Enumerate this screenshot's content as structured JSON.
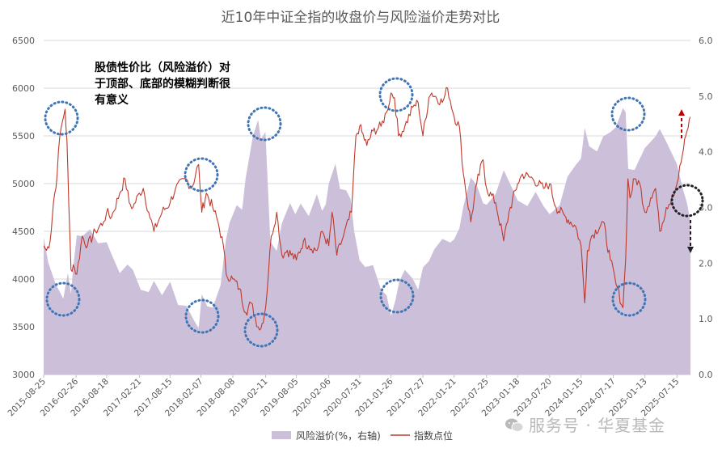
{
  "chart_data": {
    "type": "area",
    "title": "近10年中证全指的收盘价与风险溢价走势对比",
    "annotation": "股债性价比（风险溢价）对于顶部、底部的模糊判断很有意义",
    "annotation_lines": [
      "股债性价比（风险溢价）对",
      "于顶部、底部的模糊判断很",
      "有意义"
    ],
    "left_axis": {
      "ylim": [
        3000,
        6500
      ],
      "ticks": [
        "3000",
        "3500",
        "4000",
        "4500",
        "5000",
        "5500",
        "6000",
        "6500"
      ]
    },
    "right_axis": {
      "ylim": [
        0.0,
        6.0
      ],
      "ticks": [
        "0.0",
        "1.0",
        "2.0",
        "3.0",
        "4.0",
        "5.0",
        "6.0"
      ]
    },
    "x_ticks": [
      "2015-08-25",
      "2016-02-26",
      "2016-08-18",
      "2017-02-21",
      "2017-08-15",
      "2018-02-07",
      "2018-08-08",
      "2019-02-11",
      "2019-08-05",
      "2020-02-06",
      "2020-07-31",
      "2021-01-26",
      "2021-07-27",
      "2022-01-21",
      "2022-07-25",
      "2023-01-18",
      "2023-07-20",
      "2024-01-15",
      "2024-07-17",
      "2025-01-13",
      "2025-07-15"
    ],
    "x_range": [
      "2015-08-25",
      "2025-09-30"
    ],
    "series": [
      {
        "name": "风险溢价(%，右轴)",
        "axis": "right",
        "color": "#cbbfda",
        "kind": "area",
        "points": [
          [
            "2015-08-25",
            2.4
          ],
          [
            "2015-09-20",
            2.0
          ],
          [
            "2015-11-01",
            1.6
          ],
          [
            "2015-12-15",
            1.4
          ],
          [
            "2016-01-10",
            1.9
          ],
          [
            "2016-01-28",
            1.4
          ],
          [
            "2016-02-10",
            2.0
          ],
          [
            "2016-03-01",
            2.5
          ],
          [
            "2016-04-01",
            2.5
          ],
          [
            "2016-05-15",
            2.6
          ],
          [
            "2016-07-01",
            2.4
          ],
          [
            "2016-08-18",
            2.3
          ],
          [
            "2016-09-15",
            2.1
          ],
          [
            "2016-11-01",
            1.9
          ],
          [
            "2016-12-15",
            1.9
          ],
          [
            "2017-01-15",
            1.8
          ],
          [
            "2017-03-01",
            1.6
          ],
          [
            "2017-04-15",
            1.4
          ],
          [
            "2017-05-15",
            1.6
          ],
          [
            "2017-06-30",
            1.5
          ],
          [
            "2017-08-15",
            1.6
          ],
          [
            "2017-09-30",
            1.3
          ],
          [
            "2017-11-15",
            1.2
          ],
          [
            "2017-12-30",
            1.0
          ],
          [
            "2018-01-25",
            0.9
          ],
          [
            "2018-02-12",
            1.4
          ],
          [
            "2018-03-15",
            1.2
          ],
          [
            "2018-04-15",
            1.2
          ],
          [
            "2018-05-30",
            1.6
          ],
          [
            "2018-06-30",
            2.4
          ],
          [
            "2018-07-20",
            2.8
          ],
          [
            "2018-08-30",
            3.0
          ],
          [
            "2018-09-30",
            2.9
          ],
          [
            "2018-10-20",
            3.6
          ],
          [
            "2018-11-30",
            4.2
          ],
          [
            "2018-12-30",
            4.5
          ],
          [
            "2019-01-15",
            4.3
          ],
          [
            "2019-02-10",
            4.4
          ],
          [
            "2019-03-10",
            2.4
          ],
          [
            "2019-04-15",
            2.3
          ],
          [
            "2019-05-15",
            2.8
          ],
          [
            "2019-06-30",
            3.0
          ],
          [
            "2019-07-30",
            2.8
          ],
          [
            "2019-08-30",
            3.0
          ],
          [
            "2019-10-15",
            2.9
          ],
          [
            "2019-11-30",
            3.2
          ],
          [
            "2019-12-30",
            2.9
          ],
          [
            "2020-01-20",
            3.0
          ],
          [
            "2020-02-06",
            3.5
          ],
          [
            "2020-03-15",
            3.8
          ],
          [
            "2020-04-10",
            3.4
          ],
          [
            "2020-05-15",
            3.3
          ],
          [
            "2020-06-10",
            3.2
          ],
          [
            "2020-06-30",
            2.6
          ],
          [
            "2020-07-31",
            2.1
          ],
          [
            "2020-09-01",
            2.0
          ],
          [
            "2020-10-15",
            1.9
          ],
          [
            "2020-11-30",
            1.6
          ],
          [
            "2021-01-01",
            1.5
          ],
          [
            "2021-01-26",
            1.1
          ],
          [
            "2021-02-20",
            1.3
          ],
          [
            "2021-03-15",
            1.6
          ],
          [
            "2021-04-15",
            1.8
          ],
          [
            "2021-05-30",
            1.8
          ],
          [
            "2021-06-30",
            1.6
          ],
          [
            "2021-07-27",
            2.0
          ],
          [
            "2021-08-30",
            2.1
          ],
          [
            "2021-09-30",
            2.3
          ],
          [
            "2021-11-15",
            2.4
          ],
          [
            "2021-12-30",
            2.4
          ],
          [
            "2022-01-21",
            2.5
          ],
          [
            "2022-02-20",
            2.7
          ],
          [
            "2022-03-15",
            3.0
          ],
          [
            "2022-04-26",
            3.6
          ],
          [
            "2022-05-30",
            3.4
          ],
          [
            "2022-07-05",
            3.0
          ],
          [
            "2022-07-25",
            3.1
          ],
          [
            "2022-09-15",
            3.3
          ],
          [
            "2022-10-31",
            3.6
          ],
          [
            "2022-11-30",
            3.4
          ],
          [
            "2023-01-18",
            3.2
          ],
          [
            "2023-03-15",
            3.1
          ],
          [
            "2023-05-01",
            3.2
          ],
          [
            "2023-06-15",
            3.1
          ],
          [
            "2023-07-20",
            2.9
          ],
          [
            "2023-09-15",
            3.1
          ],
          [
            "2023-10-30",
            3.5
          ],
          [
            "2023-12-15",
            3.8
          ],
          [
            "2024-01-15",
            3.9
          ],
          [
            "2024-02-05",
            4.5
          ],
          [
            "2024-03-01",
            4.1
          ],
          [
            "2024-04-15",
            4.0
          ],
          [
            "2024-05-20",
            4.2
          ],
          [
            "2024-07-01",
            4.4
          ],
          [
            "2024-08-01",
            4.5
          ],
          [
            "2024-09-10",
            4.8
          ],
          [
            "2024-09-25",
            4.7
          ],
          [
            "2024-10-10",
            3.7
          ],
          [
            "2024-11-15",
            3.6
          ],
          [
            "2024-12-15",
            3.8
          ],
          [
            "2025-01-13",
            4.0
          ],
          [
            "2025-02-15",
            4.1
          ],
          [
            "2025-03-15",
            4.2
          ],
          [
            "2025-04-08",
            4.4
          ],
          [
            "2025-05-15",
            4.1
          ],
          [
            "2025-06-15",
            3.9
          ],
          [
            "2025-07-15",
            3.7
          ],
          [
            "2025-08-15",
            3.3
          ],
          [
            "2025-09-10",
            3.0
          ],
          [
            "2025-09-30",
            2.8
          ]
        ]
      },
      {
        "name": "指数点位",
        "axis": "left",
        "color": "#c0392b",
        "kind": "line",
        "points": [
          [
            "2015-08-25",
            4350
          ],
          [
            "2015-09-10",
            4300
          ],
          [
            "2015-10-01",
            4400
          ],
          [
            "2015-10-20",
            4800
          ],
          [
            "2015-11-10",
            5100
          ],
          [
            "2015-11-25",
            5500
          ],
          [
            "2015-12-10",
            5650
          ],
          [
            "2015-12-25",
            5780
          ],
          [
            "2016-01-05",
            5450
          ],
          [
            "2016-01-15",
            4800
          ],
          [
            "2016-01-28",
            4100
          ],
          [
            "2016-02-10",
            4150
          ],
          [
            "2016-03-01",
            4050
          ],
          [
            "2016-04-01",
            4450
          ],
          [
            "2016-05-01",
            4350
          ],
          [
            "2016-06-15",
            4500
          ],
          [
            "2016-08-01",
            4600
          ],
          [
            "2016-08-18",
            4700
          ],
          [
            "2016-09-15",
            4650
          ],
          [
            "2016-11-01",
            4900
          ],
          [
            "2016-12-01",
            5050
          ],
          [
            "2016-12-25",
            4800
          ],
          [
            "2017-01-15",
            4750
          ],
          [
            "2017-02-21",
            4900
          ],
          [
            "2017-03-15",
            4950
          ],
          [
            "2017-04-15",
            4700
          ],
          [
            "2017-05-15",
            4500
          ],
          [
            "2017-06-30",
            4700
          ],
          [
            "2017-08-15",
            4800
          ],
          [
            "2017-09-15",
            4950
          ],
          [
            "2017-11-15",
            5050
          ],
          [
            "2017-12-15",
            4950
          ],
          [
            "2018-01-25",
            5200
          ],
          [
            "2018-02-12",
            4700
          ],
          [
            "2018-03-10",
            4900
          ],
          [
            "2018-04-15",
            4750
          ],
          [
            "2018-05-15",
            4600
          ],
          [
            "2018-06-15",
            4350
          ],
          [
            "2018-07-01",
            4050
          ],
          [
            "2018-08-08",
            4000
          ],
          [
            "2018-09-15",
            3900
          ],
          [
            "2018-10-20",
            3650
          ],
          [
            "2018-11-20",
            3750
          ],
          [
            "2018-12-30",
            3500
          ],
          [
            "2019-01-15",
            3480
          ],
          [
            "2019-02-11",
            3700
          ],
          [
            "2019-03-15",
            4450
          ],
          [
            "2019-04-15",
            4700
          ],
          [
            "2019-05-15",
            4250
          ],
          [
            "2019-06-15",
            4300
          ],
          [
            "2019-08-05",
            4200
          ],
          [
            "2019-09-15",
            4400
          ],
          [
            "2019-10-15",
            4350
          ],
          [
            "2019-12-01",
            4300
          ],
          [
            "2019-12-31",
            4500
          ],
          [
            "2020-02-06",
            4350
          ],
          [
            "2020-02-25",
            4700
          ],
          [
            "2020-03-23",
            4250
          ],
          [
            "2020-04-30",
            4450
          ],
          [
            "2020-06-15",
            4700
          ],
          [
            "2020-07-10",
            5500
          ],
          [
            "2020-07-31",
            5600
          ],
          [
            "2020-09-10",
            5400
          ],
          [
            "2020-10-15",
            5550
          ],
          [
            "2020-11-30",
            5600
          ],
          [
            "2021-01-01",
            5750
          ],
          [
            "2021-01-26",
            5950
          ],
          [
            "2021-02-15",
            5900
          ],
          [
            "2021-03-10",
            5500
          ],
          [
            "2021-04-15",
            5600
          ],
          [
            "2021-05-30",
            5800
          ],
          [
            "2021-06-30",
            5850
          ],
          [
            "2021-07-27",
            5500
          ],
          [
            "2021-08-30",
            5900
          ],
          [
            "2021-09-15",
            5950
          ],
          [
            "2021-11-15",
            5850
          ],
          [
            "2021-12-15",
            6000
          ],
          [
            "2022-01-21",
            5700
          ],
          [
            "2022-02-20",
            5600
          ],
          [
            "2022-03-15",
            5100
          ],
          [
            "2022-04-26",
            4600
          ],
          [
            "2022-05-30",
            5000
          ],
          [
            "2022-07-05",
            5250
          ],
          [
            "2022-07-25",
            4950
          ],
          [
            "2022-09-15",
            4800
          ],
          [
            "2022-10-31",
            4400
          ],
          [
            "2022-11-30",
            4700
          ],
          [
            "2023-01-18",
            5000
          ],
          [
            "2023-02-15",
            5100
          ],
          [
            "2023-04-15",
            5050
          ],
          [
            "2023-06-15",
            4950
          ],
          [
            "2023-07-20",
            5000
          ],
          [
            "2023-08-25",
            4750
          ],
          [
            "2023-10-20",
            4650
          ],
          [
            "2023-12-15",
            4550
          ],
          [
            "2024-01-15",
            4350
          ],
          [
            "2024-02-05",
            3750
          ],
          [
            "2024-02-20",
            4300
          ],
          [
            "2024-03-15",
            4450
          ],
          [
            "2024-05-20",
            4600
          ],
          [
            "2024-06-30",
            4200
          ],
          [
            "2024-08-01",
            3950
          ],
          [
            "2024-09-10",
            3700
          ],
          [
            "2024-09-25",
            4200
          ],
          [
            "2024-10-08",
            5050
          ],
          [
            "2024-10-20",
            4850
          ],
          [
            "2024-11-15",
            5050
          ],
          [
            "2024-12-15",
            5000
          ],
          [
            "2025-01-13",
            4700
          ],
          [
            "2025-02-15",
            4850
          ],
          [
            "2025-03-15",
            4950
          ],
          [
            "2025-04-08",
            4500
          ],
          [
            "2025-05-15",
            4750
          ],
          [
            "2025-06-15",
            4850
          ],
          [
            "2025-07-15",
            5000
          ],
          [
            "2025-08-15",
            5300
          ],
          [
            "2025-09-10",
            5550
          ],
          [
            "2025-09-30",
            5700
          ]
        ]
      }
    ],
    "legend": {
      "placement": "bottom-center",
      "entries": [
        "风险溢价(%，右轴)",
        "指数点位"
      ]
    }
  },
  "watermark": {
    "text": "服务号 · 华夏基金",
    "icon": "wechat-icon"
  }
}
